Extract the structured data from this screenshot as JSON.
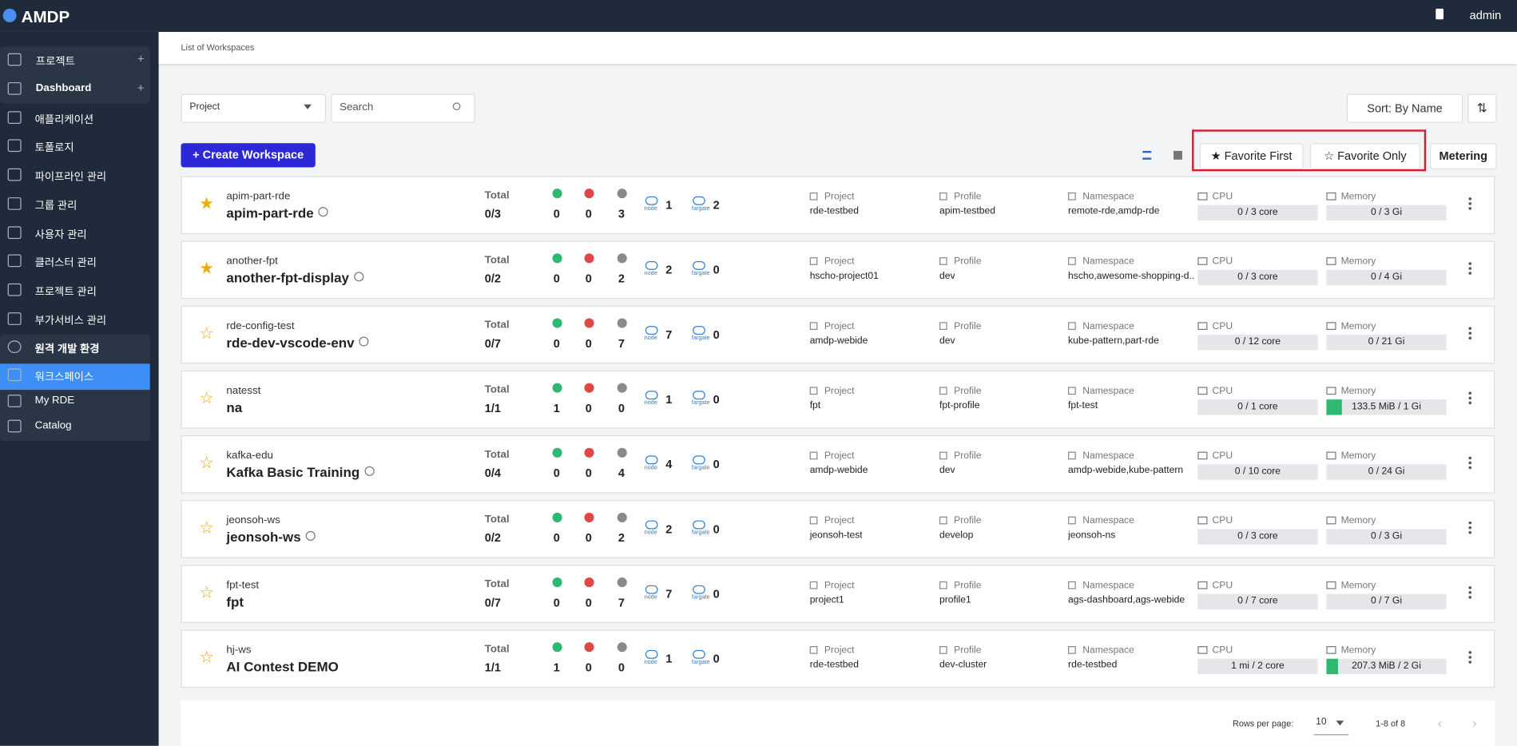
{
  "header": {
    "brand": "AMDP",
    "user": "admin"
  },
  "sidebar": {
    "items": [
      "프로젝트",
      "Dashboard",
      "애플리케이션",
      "토폴로지",
      "파이프라인 관리",
      "그룹 관리",
      "사용자 관리",
      "클러스터 관리",
      "프로젝트 관리",
      "부가서비스 관리",
      "원격 개발 환경",
      "워크스페이스",
      "My RDE",
      "Catalog"
    ]
  },
  "breadcrumb": "List of Workspaces",
  "toolbar": {
    "project_select": "Project",
    "search": "Search",
    "sort": "Sort: By Name",
    "create": "Create Workspace",
    "favorite_first": "Favorite First",
    "favorite_only": "Favorite Only",
    "metering": "Metering"
  },
  "labels": {
    "total": "Total",
    "project": "Project",
    "profile": "Profile",
    "namespace": "Namespace",
    "cpu": "CPU",
    "memory": "Memory",
    "node": "node",
    "fargate": "fargate"
  },
  "rows": [
    {
      "favorite": true,
      "name": "apim-part-rde",
      "display": "apim-part-rde",
      "info": true,
      "total": "0/3",
      "running": 0,
      "error": 0,
      "stopped": 3,
      "node": 1,
      "fargate": 2,
      "project": "rde-testbed",
      "profile": "apim-testbed",
      "namespace": "remote-rde,amdp-rde",
      "cpu": "0 / 3 core",
      "memory": "0 / 3 Gi",
      "memory_usage": 0
    },
    {
      "favorite": true,
      "name": "another-fpt",
      "display": "another-fpt-display",
      "info": true,
      "total": "0/2",
      "running": 0,
      "error": 0,
      "stopped": 2,
      "node": 2,
      "fargate": 0,
      "project": "hscho-project01",
      "profile": "dev",
      "namespace": "hscho,awesome-shopping-d...",
      "cpu": "0 / 3 core",
      "memory": "0 / 4 Gi",
      "memory_usage": 0
    },
    {
      "favorite": false,
      "name": "rde-config-test",
      "display": "rde-dev-vscode-env",
      "info": true,
      "total": "0/7",
      "running": 0,
      "error": 0,
      "stopped": 7,
      "node": 7,
      "fargate": 0,
      "project": "amdp-webide",
      "profile": "dev",
      "namespace": "kube-pattern,part-rde",
      "cpu": "0 / 12 core",
      "memory": "0 / 21 Gi",
      "memory_usage": 0
    },
    {
      "favorite": false,
      "name": "natesst",
      "display": "na",
      "info": false,
      "total": "1/1",
      "running": 1,
      "error": 0,
      "stopped": 0,
      "node": 1,
      "fargate": 0,
      "project": "fpt",
      "profile": "fpt-profile",
      "namespace": "fpt-test",
      "cpu": "0 / 1 core",
      "memory": "133.5 MiB / 1 Gi",
      "memory_usage": 13
    },
    {
      "favorite": false,
      "name": "kafka-edu",
      "display": "Kafka Basic Training",
      "info": true,
      "total": "0/4",
      "running": 0,
      "error": 0,
      "stopped": 4,
      "node": 4,
      "fargate": 0,
      "project": "amdp-webide",
      "profile": "dev",
      "namespace": "amdp-webide,kube-pattern",
      "cpu": "0 / 10 core",
      "memory": "0 / 24 Gi",
      "memory_usage": 0
    },
    {
      "favorite": false,
      "name": "jeonsoh-ws",
      "display": "jeonsoh-ws",
      "info": true,
      "total": "0/2",
      "running": 0,
      "error": 0,
      "stopped": 2,
      "node": 2,
      "fargate": 0,
      "project": "jeonsoh-test",
      "profile": "develop",
      "namespace": "jeonsoh-ns",
      "cpu": "0 / 3 core",
      "memory": "0 / 3 Gi",
      "memory_usage": 0
    },
    {
      "favorite": false,
      "name": "fpt-test",
      "display": "fpt",
      "info": false,
      "total": "0/7",
      "running": 0,
      "error": 0,
      "stopped": 7,
      "node": 7,
      "fargate": 0,
      "project": "project1",
      "profile": "profile1",
      "namespace": "ags-dashboard,ags-webide",
      "cpu": "0 / 7 core",
      "memory": "0 / 7 Gi",
      "memory_usage": 0
    },
    {
      "favorite": false,
      "name": "hj-ws",
      "display": "AI Contest DEMO",
      "info": false,
      "total": "1/1",
      "running": 1,
      "error": 0,
      "stopped": 0,
      "node": 1,
      "fargate": 0,
      "project": "rde-testbed",
      "profile": "dev-cluster",
      "namespace": "rde-testbed",
      "cpu": "1 mi / 2 core",
      "memory": "207.3 MiB / 2 Gi",
      "memory_usage": 10
    }
  ],
  "footer": {
    "rows_per_page": "Rows per page:",
    "page_size": "10",
    "range": "1-8 of 8"
  }
}
